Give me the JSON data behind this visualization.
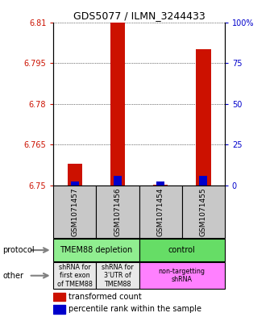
{
  "title": "GDS5077 / ILMN_3244433",
  "samples": [
    "GSM1071457",
    "GSM1071456",
    "GSM1071454",
    "GSM1071455"
  ],
  "red_values": [
    6.758,
    6.81,
    6.7502,
    6.8
  ],
  "blue_values": [
    6.7515,
    6.7535,
    6.7515,
    6.7535
  ],
  "red_base": 6.75,
  "ylim": [
    6.75,
    6.81
  ],
  "yticks_left": [
    6.75,
    6.765,
    6.78,
    6.795,
    6.81
  ],
  "yticks_right": [
    0,
    25,
    50,
    75,
    100
  ],
  "yticks_right_labels": [
    "0",
    "25",
    "50",
    "75",
    "100%"
  ],
  "bar_width": 0.35,
  "blue_bar_width": 0.18,
  "red_color": "#CC1100",
  "blue_color": "#0000CC",
  "bg_color": "#C8C8C8",
  "plot_bg": "#FFFFFF",
  "protocol_colors": [
    "#90EE90",
    "#66DD66"
  ],
  "other_colors_left": [
    "#E8E8E8",
    "#E8E8E8"
  ],
  "other_color_right": "#FF80FF",
  "protocol_text": [
    "TMEM88 depletion",
    "control"
  ],
  "other_text": [
    "shRNA for\nfirst exon\nof TMEM88",
    "shRNA for\n3'UTR of\nTMEM88",
    "non-targetting\nshRNA"
  ]
}
